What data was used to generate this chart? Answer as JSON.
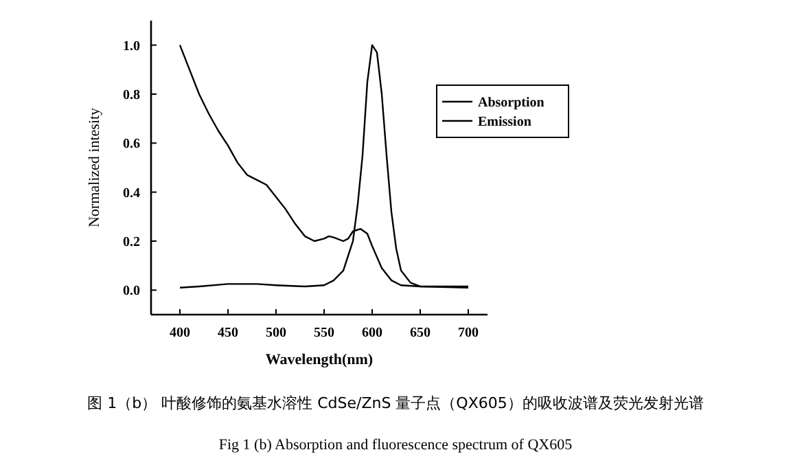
{
  "chart_data": {
    "type": "line",
    "xlabel": "Wavelength(nm)",
    "ylabel": "Normalized intesity",
    "annotations": [
      "图 1（b） 叶酸修饰的氨基水溶性 CdSe/ZnS 量子点（QX605）的吸收波谱及荧光发射光谱",
      "Fig 1 (b) Absorption and fluorescence spectrum of QX605"
    ],
    "xlim": [
      370,
      720
    ],
    "xticks": [
      400,
      450,
      500,
      550,
      600,
      650,
      700
    ],
    "ylim": [
      -0.1,
      1.1
    ],
    "yticks": [
      {
        "value": 0,
        "label": "0.0"
      },
      0.2,
      0.4,
      0.6,
      0.8,
      {
        "value": 1,
        "label": "1.0"
      }
    ],
    "grid": false,
    "legend": "top right",
    "marker": "none",
    "line_style": "solid",
    "series": [
      {
        "name": "Absorption",
        "color": "#000000",
        "x": [
          400,
          410,
          420,
          430,
          440,
          450,
          460,
          470,
          480,
          490,
          500,
          510,
          520,
          530,
          540,
          550,
          555,
          560,
          570,
          575,
          580,
          588,
          595,
          600,
          610,
          620,
          630,
          650,
          700
        ],
        "values": [
          1.0,
          0.9,
          0.8,
          0.72,
          0.65,
          0.59,
          0.52,
          0.47,
          0.45,
          0.43,
          0.38,
          0.33,
          0.27,
          0.22,
          0.2,
          0.21,
          0.22,
          0.215,
          0.2,
          0.21,
          0.24,
          0.25,
          0.23,
          0.18,
          0.09,
          0.04,
          0.02,
          0.015,
          0.015
        ]
      },
      {
        "name": "Emission",
        "color": "#000000",
        "x": [
          400,
          420,
          450,
          480,
          500,
          530,
          550,
          560,
          570,
          580,
          585,
          590,
          595,
          600,
          605,
          610,
          615,
          620,
          625,
          630,
          640,
          650,
          700
        ],
        "values": [
          0.01,
          0.015,
          0.025,
          0.025,
          0.02,
          0.015,
          0.02,
          0.04,
          0.08,
          0.2,
          0.35,
          0.55,
          0.85,
          1.0,
          0.97,
          0.8,
          0.55,
          0.32,
          0.17,
          0.08,
          0.03,
          0.015,
          0.01
        ]
      }
    ]
  }
}
